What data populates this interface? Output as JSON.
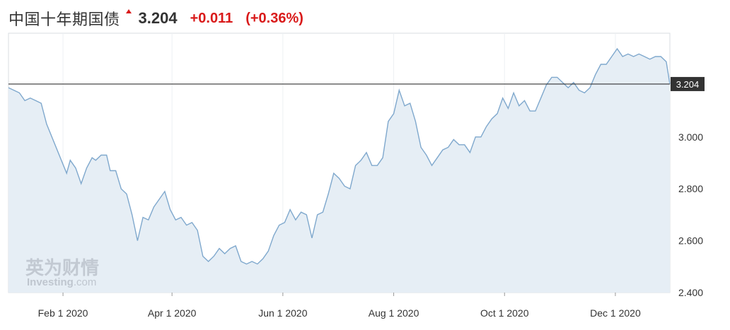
{
  "header": {
    "title": "中国十年期国债",
    "price": "3.204",
    "change": "+0.011",
    "change_pct": "(+0.36%)",
    "change_color": "#d91a1a"
  },
  "watermark": {
    "cn": "英为财情",
    "en_bold": "Investing",
    "en_suffix": ".com"
  },
  "chart_data": {
    "type": "area",
    "title": "",
    "xlabel": "",
    "ylabel": "",
    "ylim": [
      2.4,
      3.4
    ],
    "x_range": [
      "2020-01-02",
      "2020-12-31"
    ],
    "y_ticks": [
      "2.400",
      "2.600",
      "2.800",
      "3.000"
    ],
    "x_ticks": [
      {
        "date": "2020-02-01",
        "label": "Feb 1 2020"
      },
      {
        "date": "2020-04-01",
        "label": "Apr 1 2020"
      },
      {
        "date": "2020-06-01",
        "label": "Jun 1 2020"
      },
      {
        "date": "2020-08-01",
        "label": "Aug 1 2020"
      },
      {
        "date": "2020-10-01",
        "label": "Oct 1 2020"
      },
      {
        "date": "2020-12-01",
        "label": "Dec 1 2020"
      }
    ],
    "current_value": 3.204,
    "current_label": "3.204",
    "line_color": "#7fa8cd",
    "fill_color": "#e6eef5",
    "series": [
      {
        "dates": [
          "2020-01-02",
          "2020-01-05",
          "2020-01-08",
          "2020-01-11",
          "2020-01-14",
          "2020-01-17",
          "2020-01-20",
          "2020-01-23",
          "2020-02-03",
          "2020-02-05",
          "2020-02-08",
          "2020-02-11",
          "2020-02-14",
          "2020-02-17",
          "2020-02-19",
          "2020-02-22",
          "2020-02-25",
          "2020-02-27",
          "2020-03-01",
          "2020-03-04",
          "2020-03-07",
          "2020-03-10",
          "2020-03-13",
          "2020-03-16",
          "2020-03-19",
          "2020-03-22",
          "2020-03-25",
          "2020-03-28",
          "2020-03-31",
          "2020-04-03",
          "2020-04-06",
          "2020-04-09",
          "2020-04-12",
          "2020-04-15",
          "2020-04-18",
          "2020-04-21",
          "2020-04-24",
          "2020-04-27",
          "2020-04-30",
          "2020-05-03",
          "2020-05-06",
          "2020-05-09",
          "2020-05-12",
          "2020-05-15",
          "2020-05-18",
          "2020-05-21",
          "2020-05-24",
          "2020-05-27",
          "2020-05-30",
          "2020-06-02",
          "2020-06-05",
          "2020-06-08",
          "2020-06-11",
          "2020-06-14",
          "2020-06-17",
          "2020-06-20",
          "2020-06-23",
          "2020-06-26",
          "2020-06-29",
          "2020-07-02",
          "2020-07-05",
          "2020-07-08",
          "2020-07-11",
          "2020-07-14",
          "2020-07-17",
          "2020-07-20",
          "2020-07-23",
          "2020-07-26",
          "2020-07-29",
          "2020-08-01",
          "2020-08-04",
          "2020-08-07",
          "2020-08-10",
          "2020-08-13",
          "2020-08-16",
          "2020-08-19",
          "2020-08-22",
          "2020-08-25",
          "2020-08-28",
          "2020-08-31",
          "2020-09-03",
          "2020-09-06",
          "2020-09-09",
          "2020-09-12",
          "2020-09-15",
          "2020-09-18",
          "2020-09-21",
          "2020-09-24",
          "2020-09-27",
          "2020-09-30",
          "2020-10-03",
          "2020-10-06",
          "2020-10-09",
          "2020-10-12",
          "2020-10-15",
          "2020-10-18",
          "2020-10-21",
          "2020-10-24",
          "2020-10-27",
          "2020-10-30",
          "2020-11-02",
          "2020-11-05",
          "2020-11-08",
          "2020-11-11",
          "2020-11-14",
          "2020-11-17",
          "2020-11-20",
          "2020-11-23",
          "2020-11-26",
          "2020-11-29",
          "2020-12-02",
          "2020-12-05",
          "2020-12-08",
          "2020-12-11",
          "2020-12-14",
          "2020-12-17",
          "2020-12-20",
          "2020-12-23",
          "2020-12-26",
          "2020-12-29",
          "2020-12-31"
        ],
        "values": [
          3.19,
          3.18,
          3.17,
          3.14,
          3.15,
          3.14,
          3.13,
          3.05,
          2.86,
          2.91,
          2.88,
          2.82,
          2.88,
          2.92,
          2.91,
          2.93,
          2.93,
          2.87,
          2.87,
          2.8,
          2.78,
          2.7,
          2.6,
          2.69,
          2.68,
          2.73,
          2.76,
          2.79,
          2.72,
          2.68,
          2.69,
          2.66,
          2.67,
          2.64,
          2.54,
          2.52,
          2.54,
          2.57,
          2.55,
          2.57,
          2.58,
          2.52,
          2.51,
          2.52,
          2.51,
          2.53,
          2.56,
          2.62,
          2.66,
          2.67,
          2.72,
          2.68,
          2.71,
          2.7,
          2.61,
          2.7,
          2.71,
          2.78,
          2.86,
          2.84,
          2.81,
          2.8,
          2.89,
          2.91,
          2.94,
          2.89,
          2.89,
          2.92,
          3.06,
          3.09,
          3.18,
          3.12,
          3.13,
          3.06,
          2.96,
          2.93,
          2.89,
          2.92,
          2.95,
          2.96,
          2.99,
          2.97,
          2.97,
          2.94,
          3.0,
          3.0,
          3.04,
          3.07,
          3.09,
          3.15,
          3.11,
          3.17,
          3.12,
          3.14,
          3.1,
          3.1,
          3.15,
          3.2,
          3.23,
          3.23,
          3.21,
          3.19,
          3.21,
          3.18,
          3.17,
          3.19,
          3.24,
          3.28,
          3.28,
          3.31,
          3.34,
          3.31,
          3.32,
          3.31,
          3.32,
          3.31,
          3.3,
          3.31,
          3.31,
          3.29,
          3.204
        ]
      }
    ]
  }
}
